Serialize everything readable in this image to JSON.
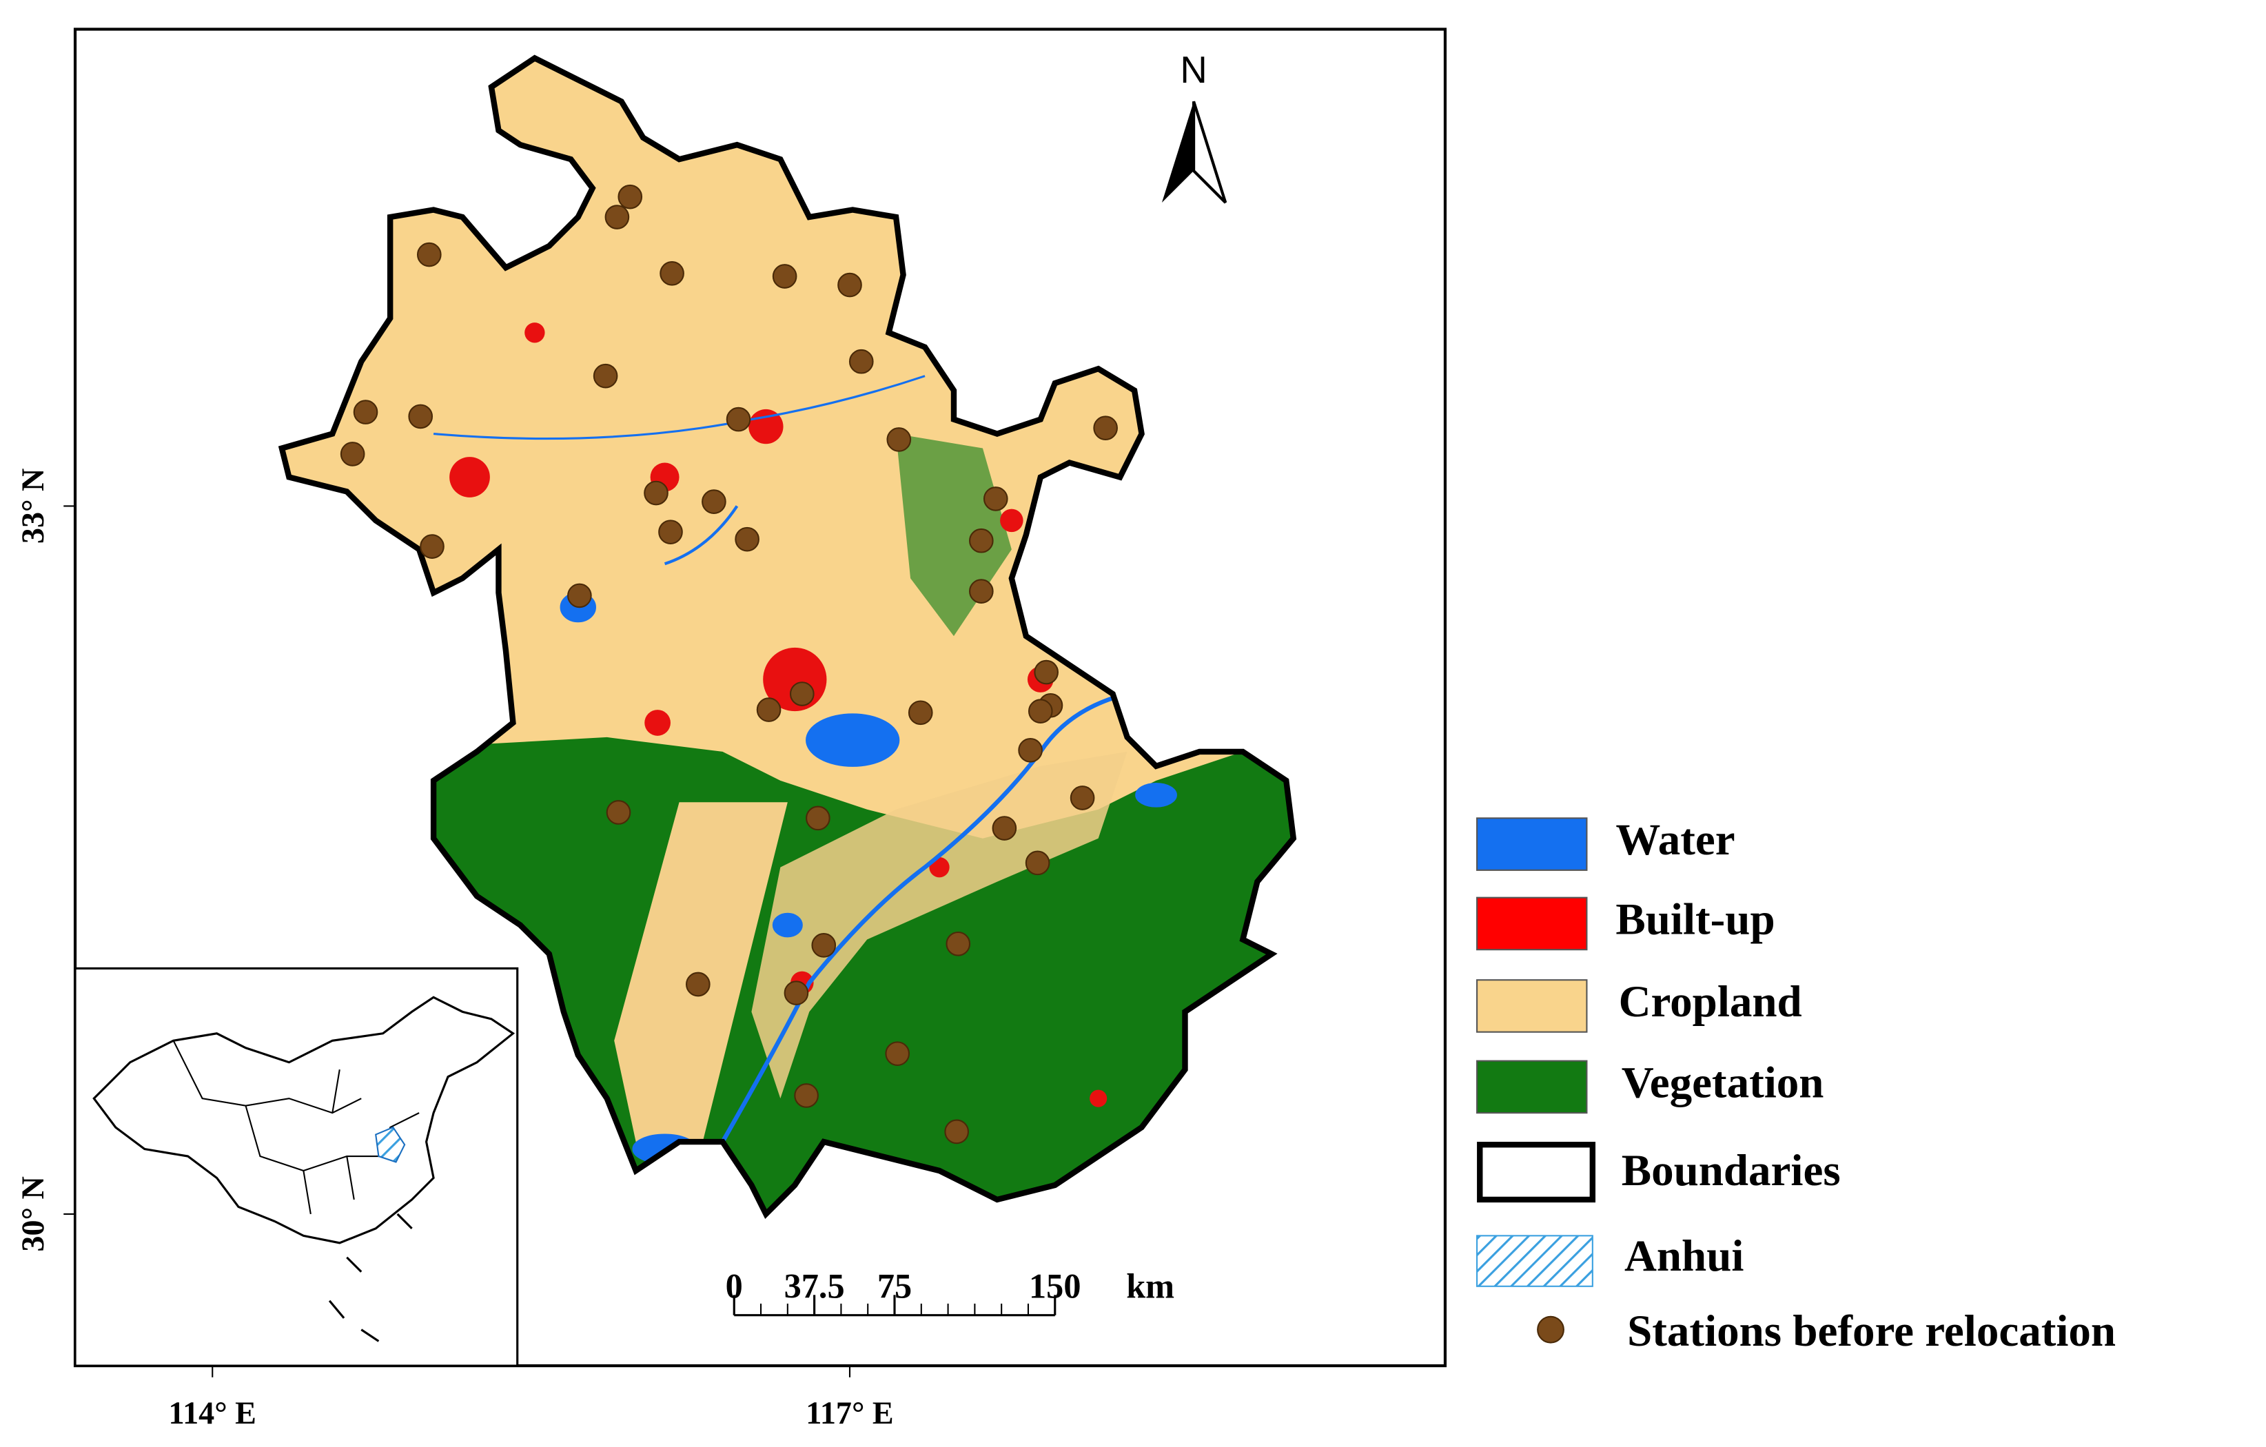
{
  "map": {
    "north_label": "N",
    "lat_labels": [
      "33° N",
      "30° N"
    ],
    "lon_labels": [
      "114° E",
      "117° E"
    ],
    "scale_bar": {
      "ticks": [
        0,
        37.5,
        75,
        150
      ],
      "unit": "km"
    },
    "legend": [
      "Water",
      "Built-up",
      "Cropland",
      "Vegetation",
      "Boundaries",
      "Anhui",
      "Stations before relocation"
    ]
  }
}
